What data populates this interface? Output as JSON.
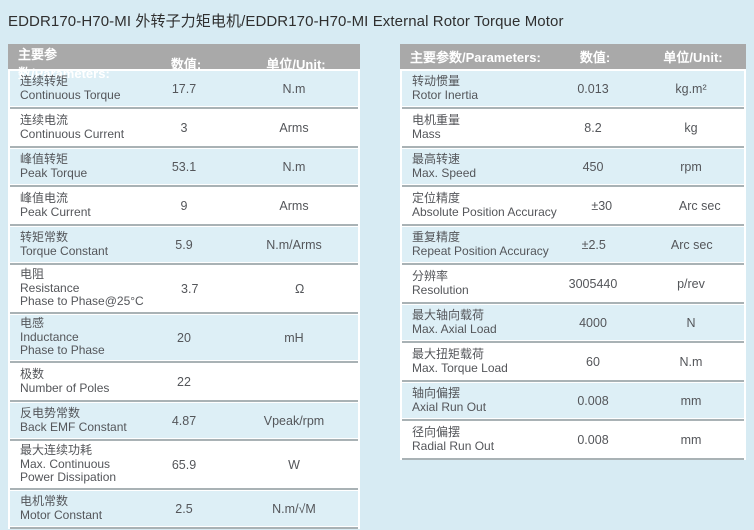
{
  "title": "EDDR170-H70-MI 外转子力矩电机/EDDR170-H70-MI External Rotor Torque Motor",
  "colors": {
    "page_background": "#d7ebf3",
    "header_background": "#a9a9a9",
    "header_text": "#ffffff",
    "alt_row_background": "#ddeff6",
    "row_background": "#ffffff",
    "divider": "#a9b2b5",
    "body_text": "#54565a"
  },
  "tables": [
    {
      "headers": {
        "parameter": "主要参数/Parameters:",
        "value": "数值:",
        "unit": "单位/Unit:"
      },
      "rows": [
        {
          "labels": [
            "连续转矩",
            "Continuous Torque"
          ],
          "value": "17.7",
          "unit": "N.m"
        },
        {
          "labels": [
            "连续电流",
            "Continuous Current"
          ],
          "value": "3",
          "unit": "Arms"
        },
        {
          "labels": [
            "峰值转矩",
            "Peak Torque"
          ],
          "value": "53.1",
          "unit": "N.m"
        },
        {
          "labels": [
            "峰值电流",
            "Peak Current"
          ],
          "value": "9",
          "unit": "Arms"
        },
        {
          "labels": [
            "转矩常数",
            "Torque Constant"
          ],
          "value": "5.9",
          "unit": "N.m/Arms"
        },
        {
          "labels": [
            "电阻",
            "Resistance",
            "Phase to Phase@25°C"
          ],
          "value": "3.7",
          "unit": "Ω"
        },
        {
          "labels": [
            "电感",
            "Inductance",
            "Phase to Phase"
          ],
          "value": "20",
          "unit": "mH"
        },
        {
          "labels": [
            "极数",
            "Number of Poles"
          ],
          "value": "22",
          "unit": ""
        },
        {
          "labels": [
            "反电势常数",
            "Back EMF Constant"
          ],
          "value": "4.87",
          "unit": "Vpeak/rpm"
        },
        {
          "labels": [
            "最大连续功耗",
            "Max. Continuous",
            "Power Dissipation"
          ],
          "value": "65.9",
          "unit": "W"
        },
        {
          "labels": [
            "电机常数",
            "Motor Constant"
          ],
          "value": "2.5",
          "unit": "N.m/√M"
        }
      ]
    },
    {
      "headers": {
        "parameter": "主要参数/Parameters:",
        "value": "数值:",
        "unit": "单位/Unit:"
      },
      "rows": [
        {
          "labels": [
            "转动惯量",
            "Rotor Inertia"
          ],
          "value": "0.013",
          "unit": "kg.m²"
        },
        {
          "labels": [
            "电机重量",
            "Mass"
          ],
          "value": "8.2",
          "unit": "kg"
        },
        {
          "labels": [
            "最高转速",
            "Max. Speed"
          ],
          "value": "450",
          "unit": "rpm"
        },
        {
          "labels": [
            "定位精度",
            "Absolute Position Accuracy"
          ],
          "value": "±30",
          "unit": "Arc sec"
        },
        {
          "labels": [
            "重复精度",
            "Repeat Position Accuracy"
          ],
          "value": "±2.5",
          "unit": "Arc sec"
        },
        {
          "labels": [
            "分辨率",
            "Resolution"
          ],
          "value": "3005440",
          "unit": "p/rev"
        },
        {
          "labels": [
            "最大轴向载荷",
            "Max. Axial Load"
          ],
          "value": "4000",
          "unit": "N"
        },
        {
          "labels": [
            "最大扭矩载荷",
            "Max. Torque Load"
          ],
          "value": "60",
          "unit": "N.m"
        },
        {
          "labels": [
            "轴向偏摆",
            "Axial Run Out"
          ],
          "value": "0.008",
          "unit": "mm"
        },
        {
          "labels": [
            "径向偏摆",
            "Radial Run Out"
          ],
          "value": "0.008",
          "unit": "mm"
        }
      ]
    }
  ]
}
